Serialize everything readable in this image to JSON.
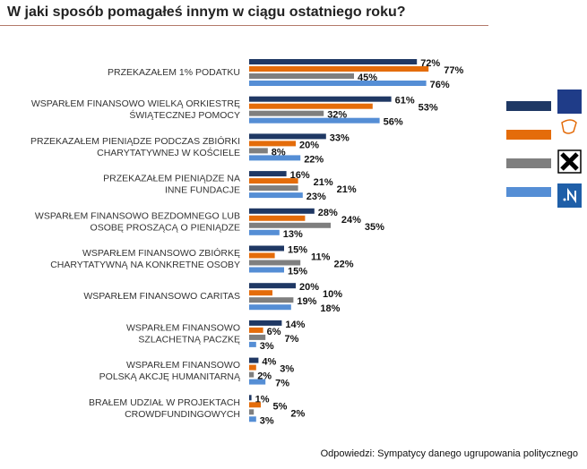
{
  "chart_data": {
    "type": "bar",
    "orientation": "horizontal",
    "title": "W jaki sposób pomagałeś innym w ciągu ostatniego roku?",
    "footer": "Odpowiedzi: Sympatycy danego ugrupowania politycznego",
    "categories": [
      [
        "PRZEKAZAŁEM 1% PODATKU"
      ],
      [
        "WSPARŁEM FINANSOWO WIELKĄ ORKIESTRĘ",
        "ŚWIĄTECZNEJ POMOCY"
      ],
      [
        "PRZEKAZAŁEM PIENIĄDZE PODCZAS ZBIÓRKI",
        "CHARYTATYWNEJ W KOŚCIELE"
      ],
      [
        "PRZEKAZAŁEM PIENIĄDZE NA",
        "INNE FUNDACJE"
      ],
      [
        "WSPARŁEM FINANSOWO BEZDOMNEGO LUB",
        "OSOBĘ PROSZĄCĄ O PIENIĄDZE"
      ],
      [
        "WSPARŁEM FINANSOWO ZBIÓRKĘ",
        "CHARYTATYWNĄ NA KONKRETNE OSOBY"
      ],
      [
        "WSPARŁEM FINANSOWO CARITAS"
      ],
      [
        "WSPARŁEM FINANSOWO",
        "SZLACHETNĄ PACZKĘ"
      ],
      [
        "WSPARŁEM FINANSOWO",
        "POLSKĄ AKCJĘ HUMANITARNĄ"
      ],
      [
        "BRAŁEM UDZIAŁ W PROJEKTACH",
        "CROWDFUNDINGOWYCH"
      ]
    ],
    "series": [
      {
        "legend_logo": "PiS",
        "color": "#1f3864",
        "values": [
          72,
          61,
          33,
          16,
          28,
          15,
          20,
          14,
          4,
          1
        ]
      },
      {
        "legend_logo": "Platforma Obywatelska",
        "color": "#e46c0a",
        "values": [
          77,
          53,
          20,
          21,
          24,
          11,
          10,
          6,
          3,
          5
        ]
      },
      {
        "legend_logo": "Kukiz'15",
        "color": "#7f7f7f",
        "values": [
          45,
          32,
          8,
          21,
          35,
          22,
          19,
          7,
          2,
          2
        ]
      },
      {
        "legend_logo": ".N",
        "color": "#558ed5",
        "values": [
          76,
          56,
          22,
          23,
          13,
          15,
          18,
          3,
          7,
          3
        ]
      }
    ],
    "value_suffix": "%",
    "xlim": [
      0,
      100
    ],
    "grid": false,
    "legend_position": "right"
  }
}
